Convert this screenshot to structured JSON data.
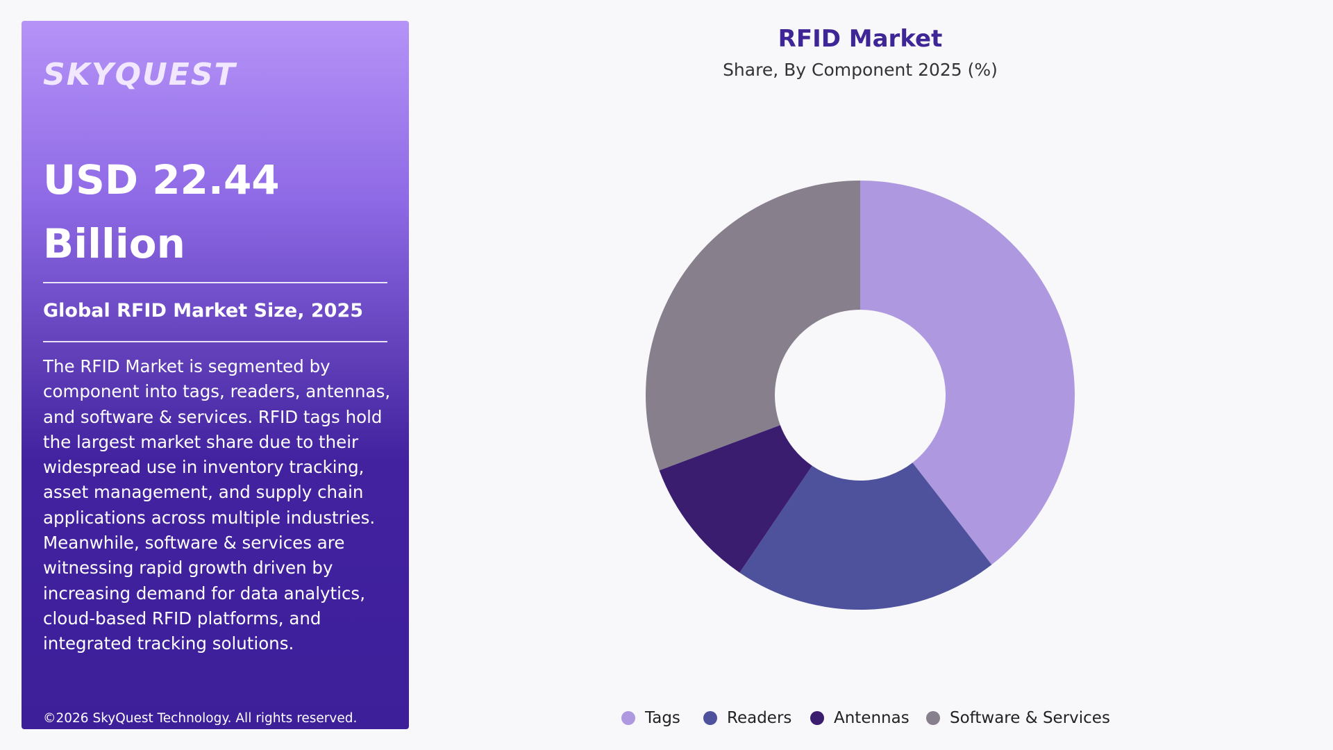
{
  "sidebar": {
    "logo": "SKYQUEST",
    "headline_line1": "USD 22.44",
    "headline_line2": "Billion",
    "subhead": "Global RFID Market Size, 2025",
    "description": "The RFID Market is segmented by component into tags, readers, antennas, and software & services. RFID tags hold the largest market share due to their widespread use in inventory tracking, asset management, and supply chain applications across multiple industries. Meanwhile, software & services are witnessing rapid growth driven by increasing demand for data analytics, cloud-based RFID platforms, and integrated tracking solutions.",
    "copyright": "©2026 SkyQuest Technology. All rights reserved."
  },
  "chart_data": {
    "type": "pie",
    "variant": "donut",
    "title": "RFID Market",
    "subtitle": "Share, By Component 2025 (%)",
    "categories": [
      "Tags",
      "Readers",
      "Antennas",
      "Software & Services"
    ],
    "values": [
      39.5,
      20,
      9.8,
      30.7
    ],
    "colors": [
      "#ae99e0",
      "#4e519b",
      "#3b1d6f",
      "#887f8d"
    ],
    "legend_position": "bottom"
  }
}
